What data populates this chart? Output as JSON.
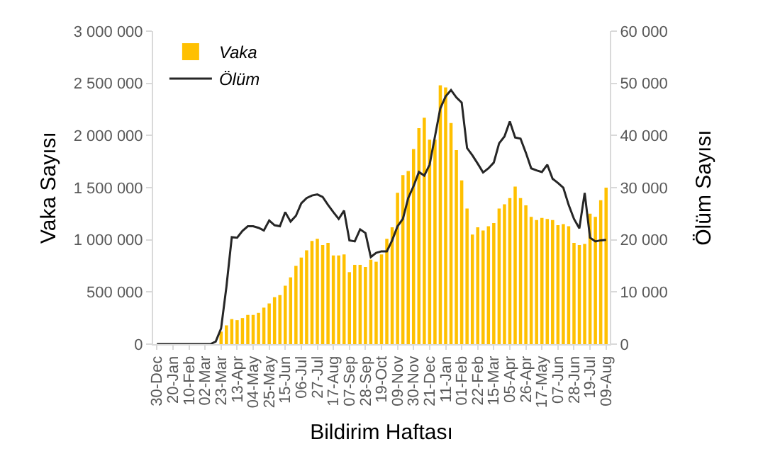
{
  "chart_data": {
    "type": "bar",
    "xlabel": "Bildirim Haftası",
    "ylabel": "Vaka Sayısı",
    "y2label": "Ölüm Sayısı",
    "categories": [
      "30-Dec",
      null,
      null,
      "20-Jan",
      null,
      null,
      "10-Feb",
      null,
      null,
      "02-Mar",
      null,
      null,
      "23-Mar",
      null,
      null,
      "13-Apr",
      null,
      null,
      "04-May",
      null,
      null,
      "25-May",
      null,
      null,
      "15-Jun",
      null,
      null,
      "06-Jul",
      null,
      null,
      "27-Jul",
      null,
      null,
      "17-Aug",
      null,
      null,
      "07-Sep",
      null,
      null,
      "28-Sep",
      null,
      null,
      "19-Oct",
      null,
      null,
      "09-Nov",
      null,
      null,
      "30-Nov",
      null,
      null,
      "21-Dec",
      null,
      null,
      "11-Jan",
      null,
      null,
      "01-Feb",
      null,
      null,
      "22-Feb",
      null,
      null,
      "15-Mar",
      null,
      null,
      "05-Apr",
      null,
      null,
      "26-Apr",
      null,
      null,
      "17-May",
      null,
      null,
      "07-Jun",
      null,
      null,
      "28-Jun",
      null,
      null,
      "19-Jul",
      null,
      null,
      "09-Aug"
    ],
    "series": [
      {
        "name": "Vaka",
        "color": "#ffc000",
        "values": [
          0,
          0,
          0,
          0,
          0,
          0,
          0,
          0,
          0,
          0,
          0,
          null,
          120000,
          180000,
          240000,
          230000,
          250000,
          280000,
          280000,
          300000,
          350000,
          390000,
          450000,
          470000,
          560000,
          640000,
          750000,
          830000,
          900000,
          990000,
          1010000,
          950000,
          970000,
          850000,
          850000,
          860000,
          690000,
          760000,
          760000,
          740000,
          810000,
          790000,
          860000,
          1010000,
          1120000,
          1450000,
          1620000,
          1660000,
          1870000,
          2070000,
          2170000,
          1960000,
          1960000,
          2480000,
          2460000,
          2120000,
          1860000,
          1570000,
          1300000,
          1050000,
          1120000,
          1090000,
          1130000,
          1160000,
          1300000,
          1340000,
          1400000,
          1510000,
          1400000,
          1330000,
          1220000,
          1190000,
          1210000,
          1200000,
          1190000,
          1140000,
          1150000,
          1130000,
          970000,
          950000,
          960000,
          1250000,
          1220000,
          1380000,
          1500000
        ]
      },
      {
        "name": "Ölüm",
        "type": "line",
        "axis": "y2",
        "color": "#262626",
        "values": [
          0,
          0,
          0,
          0,
          0,
          0,
          0,
          0,
          0,
          0,
          0,
          500,
          3000,
          11000,
          20500,
          20400,
          21700,
          22600,
          22600,
          22300,
          21800,
          23700,
          22800,
          22600,
          25300,
          23500,
          24600,
          27000,
          28000,
          28500,
          28700,
          28200,
          26700,
          25300,
          24000,
          25600,
          19900,
          19700,
          22000,
          21300,
          16700,
          17500,
          17800,
          17800,
          19900,
          22600,
          24000,
          28000,
          30300,
          33000,
          32300,
          34400,
          39800,
          45200,
          47500,
          48700,
          47300,
          46300,
          37600,
          36200,
          34600,
          32900,
          33700,
          34800,
          38500,
          39800,
          42700,
          39600,
          39400,
          36700,
          33700,
          33300,
          33000,
          34400,
          31700,
          30900,
          30000,
          26700,
          24000,
          22200,
          29000,
          20400,
          19700,
          19900,
          20000
        ]
      }
    ],
    "ylim": [
      0,
      3000000
    ],
    "yticks": [
      {
        "value": 0,
        "label": "0"
      },
      {
        "value": 500000,
        "label": "500 000"
      },
      {
        "value": 1000000,
        "label": "1 000 000"
      },
      {
        "value": 1500000,
        "label": "1 500 000"
      },
      {
        "value": 2000000,
        "label": "2 000 000"
      },
      {
        "value": 2500000,
        "label": "2 500 000"
      },
      {
        "value": 3000000,
        "label": "3 000 000"
      }
    ],
    "y2lim": [
      0,
      60000
    ],
    "y2ticks": [
      {
        "value": 0,
        "label": "0"
      },
      {
        "value": 10000,
        "label": "10 000"
      },
      {
        "value": 20000,
        "label": "20 000"
      },
      {
        "value": 30000,
        "label": "30 000"
      },
      {
        "value": 40000,
        "label": "40 000"
      },
      {
        "value": 50000,
        "label": "50 000"
      },
      {
        "value": 60000,
        "label": "60 000"
      }
    ],
    "grid": false,
    "legend": "top left",
    "marker": "none",
    "line_style": "solid"
  }
}
